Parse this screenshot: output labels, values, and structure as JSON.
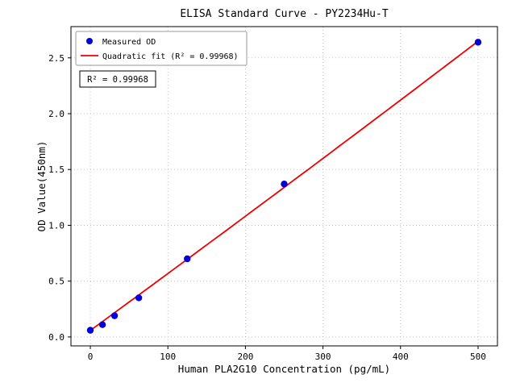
{
  "figure": {
    "background": "#ffffff"
  },
  "chart_data": {
    "type": "scatter",
    "title": "ELISA Standard Curve - PY2234Hu-T",
    "xlabel": "Human PLA2G10 Concentration (pg/mL)",
    "ylabel": "OD Value(450nm)",
    "xlim": [
      -25,
      525
    ],
    "ylim": [
      -0.08,
      2.78
    ],
    "x_ticks": [
      0,
      100,
      200,
      300,
      400,
      500
    ],
    "x_tick_labels": [
      "0",
      "100",
      "200",
      "300",
      "400",
      "500"
    ],
    "y_ticks": [
      0,
      0.5,
      1.0,
      1.5,
      2.0,
      2.5
    ],
    "y_tick_labels": [
      "0.0",
      "0.5",
      "1.0",
      "1.5",
      "2.0",
      "2.5"
    ],
    "grid": true,
    "grid_style": "dotted",
    "legend_position": "upper-left",
    "annotation": "R² = 0.99968",
    "colors": {
      "scatter": "#0000dd",
      "fit_line": "#ee0000",
      "grid": "#b5b5b5",
      "spine": "#000000",
      "legend_border": "#999999"
    },
    "series": [
      {
        "name": "Measured OD",
        "type": "scatter",
        "color": "#0000dd",
        "x": [
          0,
          15.625,
          31.25,
          62.5,
          125,
          250,
          500
        ],
        "y": [
          0.06,
          0.11,
          0.19,
          0.35,
          0.7,
          1.37,
          2.64
        ]
      },
      {
        "name": "Quadratic fit (R² = 0.99968)",
        "type": "line",
        "color": "#ee0000",
        "fit_quadratic": {
          "a": 0.0586,
          "b": 0.00507,
          "c": 2.2e-07
        },
        "x_range": [
          0,
          500
        ],
        "r_squared": 0.99968
      }
    ]
  }
}
